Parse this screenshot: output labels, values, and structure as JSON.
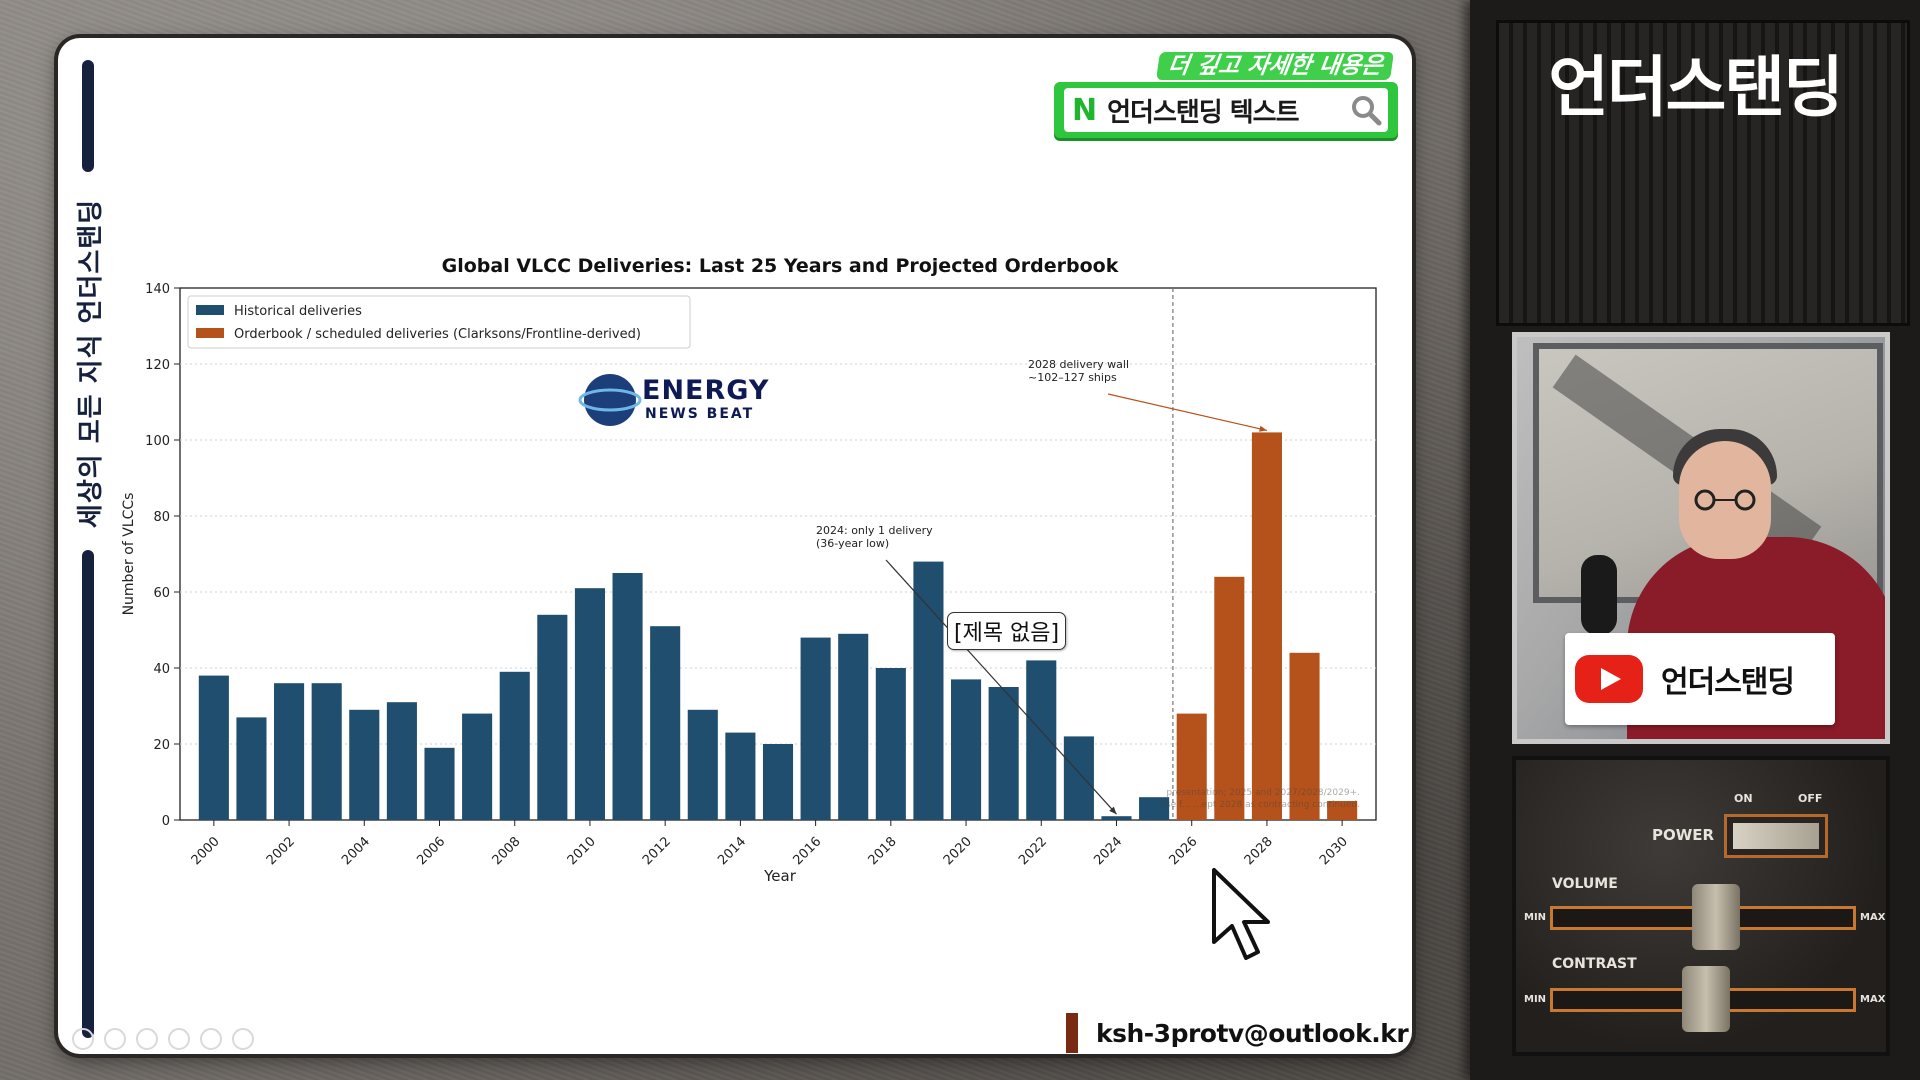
{
  "slide": {
    "vertical_text": "세상의 모든 지식  언더스탠딩",
    "banner_sub": "더 깊고 자세한 내용은",
    "banner_logo": "N",
    "banner_text": "언더스탠딩 텍스트",
    "email": "ksh-3protv@outlook.kr",
    "watermark_line1": "ENERGY",
    "watermark_line2": "NEWS BEAT",
    "tooltip": "[제목 없음]"
  },
  "right_panel": {
    "title": "언더스탠딩",
    "nameplate": "언더스탠딩",
    "controls": {
      "power": "POWER",
      "on": "ON",
      "off": "OFF",
      "volume": "VOLUME",
      "contrast": "CONTRAST",
      "min": "MIN",
      "max": "MAX"
    }
  },
  "colors": {
    "historical": "#1f4e6e",
    "orderbook": "#b5521b",
    "accent_green": "#2ec63c"
  },
  "chart_data": {
    "type": "bar",
    "title": "Global VLCC Deliveries: Last 25 Years and Projected Orderbook",
    "xlabel": "Year",
    "ylabel": "Number of VLCCs",
    "ylim": [
      0,
      140
    ],
    "yticks": [
      0,
      20,
      40,
      60,
      80,
      100,
      120,
      140
    ],
    "xticks": [
      "2000",
      "2002",
      "2004",
      "2006",
      "2008",
      "2010",
      "2012",
      "2014",
      "2016",
      "2018",
      "2020",
      "2022",
      "2024",
      "2026",
      "2028",
      "2030"
    ],
    "grid": "horizontal-dotted",
    "legend_position": "top-left",
    "categories": [
      "2000",
      "2001",
      "2002",
      "2003",
      "2004",
      "2005",
      "2006",
      "2007",
      "2008",
      "2009",
      "2010",
      "2011",
      "2012",
      "2013",
      "2014",
      "2015",
      "2016",
      "2017",
      "2018",
      "2019",
      "2020",
      "2021",
      "2022",
      "2023",
      "2024",
      "2025",
      "2026",
      "2027",
      "2028",
      "2029",
      "2030"
    ],
    "series": [
      {
        "name": "Historical deliveries",
        "color": "#1f4e6e",
        "values": [
          38,
          27,
          36,
          36,
          29,
          31,
          19,
          28,
          39,
          54,
          61,
          65,
          51,
          29,
          23,
          20,
          48,
          49,
          40,
          68,
          37,
          35,
          42,
          22,
          1,
          6,
          null,
          null,
          null,
          null,
          null
        ]
      },
      {
        "name": "Orderbook / scheduled deliveries (Clarksons/Frontline-derived)",
        "color": "#b5521b",
        "values": [
          null,
          null,
          null,
          null,
          null,
          null,
          null,
          null,
          null,
          null,
          null,
          null,
          null,
          null,
          null,
          null,
          null,
          null,
          null,
          null,
          null,
          null,
          null,
          null,
          null,
          null,
          28,
          64,
          102,
          44,
          5
        ]
      }
    ],
    "divider_after": "2025",
    "annotations": [
      {
        "lines": [
          "2024: only 1 delivery",
          "(36-year low)"
        ],
        "target": "2024",
        "target_value": 1
      },
      {
        "lines": [
          "2028 delivery wall",
          "~102–127 ships"
        ],
        "target": "2028",
        "target_value": 102
      }
    ],
    "footnote_line1": "presentation; 2025 and 2027/2028/2029+.",
    "footnote_line2": "ose f...  ...ept 2028 as contracting continued."
  }
}
